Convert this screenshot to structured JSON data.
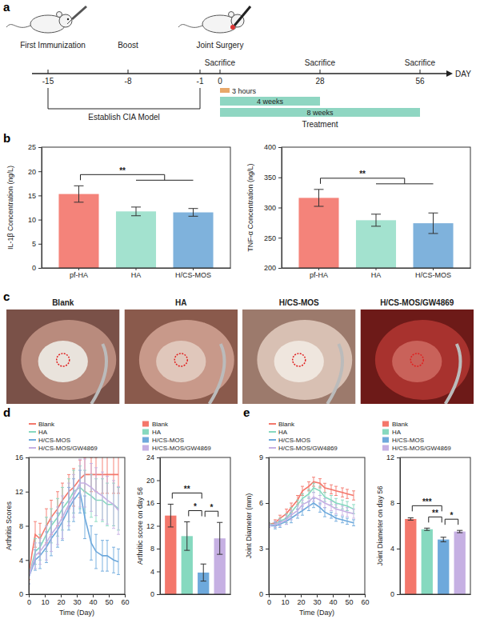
{
  "panel_letters": [
    "a",
    "b",
    "c",
    "d",
    "e"
  ],
  "timeline": {
    "ticks": [
      "-15",
      "-8",
      "-1",
      "0",
      "28",
      "56"
    ],
    "axis_label": "DAY",
    "events": [
      {
        "label": "First Immunization",
        "at": "-15"
      },
      {
        "label": "Boost",
        "at": "-8"
      },
      {
        "label": "Joint Surgery",
        "at": "0"
      }
    ],
    "sacrifices": [
      {
        "label": "Sacrifice",
        "at": "0"
      },
      {
        "label": "Sacrifice",
        "at": "28"
      },
      {
        "label": "Sacrifice",
        "at": "56"
      }
    ],
    "periods": [
      {
        "label": "3 hours",
        "start": "0"
      },
      {
        "label": "4 weeks",
        "start": "0",
        "end": "28"
      },
      {
        "label": "8 weeks",
        "start": "0",
        "end": "56"
      }
    ],
    "bracket": {
      "label": "Establish CIA Model",
      "from": "-15",
      "to": "-1"
    },
    "treatment": "Treatment"
  },
  "photos": {
    "labels": [
      "Blank",
      "HA",
      "H/CS-MOS",
      "H/CS-MOS/GW4869"
    ]
  },
  "chart_data": [
    {
      "type": "bar",
      "categories": [
        "pf-HA",
        "HA",
        "H/CS-MOS"
      ],
      "values": [
        15.3,
        11.7,
        11.5
      ],
      "errors": [
        1.7,
        0.9,
        0.8
      ],
      "colors": [
        "#f4837a",
        "#a3e2cf",
        "#7fb2dc"
      ],
      "ylabel": "IL-1β Concentration (ng/L)",
      "ylim": [
        0,
        25
      ],
      "yticks": [
        0,
        5,
        10,
        15,
        20,
        25
      ],
      "grid": false,
      "annotations": [
        {
          "groups": [
            [
              "pf-HA"
            ],
            [
              "HA",
              "H/CS-MOS"
            ]
          ],
          "text": "**"
        }
      ]
    },
    {
      "type": "bar",
      "categories": [
        "pf-HA",
        "HA",
        "H/CS-MOS"
      ],
      "values": [
        316,
        279,
        274
      ],
      "errors": [
        14,
        10,
        17
      ],
      "colors": [
        "#f4837a",
        "#a3e2cf",
        "#7fb2dc"
      ],
      "ylabel": "TNF-α Concentration (ng/L)",
      "ylim": [
        200,
        400
      ],
      "yticks": [
        200,
        250,
        300,
        350,
        400
      ],
      "grid": false,
      "annotations": [
        {
          "groups": [
            [
              "pf-HA"
            ],
            [
              "HA",
              "H/CS-MOS"
            ]
          ],
          "text": "**"
        }
      ]
    },
    {
      "type": "line",
      "xlabel": "Time (Day)",
      "ylabel": "Arthritis Scores",
      "x": [
        0,
        4,
        7,
        11,
        14,
        18,
        21,
        25,
        28,
        32,
        35,
        39,
        42,
        46,
        49,
        53,
        56
      ],
      "xlim": [
        0,
        60
      ],
      "xticks": [
        0,
        10,
        20,
        30,
        40,
        50,
        60
      ],
      "ylim": [
        0,
        16
      ],
      "yticks": [
        0,
        4,
        8,
        12,
        16
      ],
      "grid": false,
      "legend": "top",
      "series": [
        {
          "name": "Blank",
          "color": "#f4776b",
          "values": [
            2.5,
            7,
            6.5,
            8,
            9,
            10,
            11,
            12,
            12.5,
            13.5,
            14,
            14,
            14,
            14,
            14,
            14,
            14
          ],
          "errors": [
            0.8,
            1.5,
            1.8,
            2,
            2,
            2,
            2,
            2,
            2.2,
            2.2,
            2,
            2,
            2,
            2.2,
            2.2,
            2.2,
            2.2
          ]
        },
        {
          "name": "HA",
          "color": "#86d9bf",
          "values": [
            2,
            5,
            5.5,
            7,
            8,
            9,
            10,
            11,
            12,
            12.5,
            12,
            11.5,
            11,
            11,
            10.5,
            10.5,
            10
          ],
          "errors": [
            0.8,
            1.5,
            1.5,
            2,
            2,
            2.2,
            2.5,
            2.5,
            2.5,
            2.5,
            2.5,
            2.5,
            2.5,
            2.5,
            2.5,
            2.5,
            2.5
          ]
        },
        {
          "name": "H/CS-MOS",
          "color": "#6ea9dc",
          "values": [
            2,
            4,
            4.5,
            5.5,
            6.5,
            7.5,
            8.5,
            10,
            11,
            12,
            9,
            6,
            5,
            4.5,
            4.5,
            4,
            3.8
          ],
          "errors": [
            0.8,
            1.2,
            1.5,
            1.8,
            2,
            2,
            2.2,
            2.5,
            2.5,
            2.5,
            2.5,
            2,
            2,
            1.8,
            1.8,
            1.5,
            1.5
          ]
        },
        {
          "name": "H/CS-MOS/GW4869",
          "color": "#c6b0e3",
          "values": [
            2,
            4.5,
            5,
            6,
            7,
            8,
            9,
            10.5,
            11.5,
            13,
            13,
            12.5,
            12,
            11.5,
            11,
            10.5,
            9.8
          ],
          "errors": [
            0.8,
            1.5,
            1.5,
            2,
            2,
            2.2,
            2.5,
            2.5,
            2.5,
            2.8,
            2.8,
            2.8,
            2.8,
            2.8,
            2.8,
            2.8,
            2.8
          ]
        }
      ]
    },
    {
      "type": "bar",
      "categories": [
        "Blank",
        "HA",
        "H/CS-MOS",
        "H/CS-MOS/GW4869"
      ],
      "values": [
        13.8,
        10.2,
        3.8,
        9.8
      ],
      "errors": [
        2,
        2.5,
        1.5,
        2.8
      ],
      "colors": [
        "#f4776b",
        "#86d9bf",
        "#6ea9dc",
        "#c6b0e3"
      ],
      "ylabel": "Arthritic score on day 56",
      "ylim": [
        0,
        24
      ],
      "yticks": [
        0,
        4,
        8,
        12,
        16,
        20,
        24
      ],
      "grid": false,
      "legend": "top",
      "tick_labels": "y",
      "annotations": [
        {
          "groups": [
            [
              "HA"
            ],
            [
              "H/CS-MOS"
            ]
          ],
          "text": "*"
        },
        {
          "groups": [
            [
              "H/CS-MOS"
            ],
            [
              "H/CS-MOS/GW4869"
            ]
          ],
          "text": "*"
        },
        {
          "groups": [
            [
              "Blank"
            ],
            [
              "H/CS-MOS"
            ]
          ],
          "text": "**"
        }
      ]
    },
    {
      "type": "line",
      "xlabel": "Time (Day)",
      "ylabel": "Joint Diameter (mm)",
      "x": [
        0,
        4,
        7,
        11,
        14,
        18,
        21,
        25,
        28,
        32,
        35,
        39,
        42,
        46,
        49,
        53
      ],
      "xlim": [
        0,
        60
      ],
      "xticks": [
        0,
        10,
        20,
        30,
        40,
        50,
        60
      ],
      "ylim": [
        0,
        9
      ],
      "yticks": [
        0,
        3,
        6,
        9
      ],
      "grid": false,
      "legend": "top",
      "series": [
        {
          "name": "Blank",
          "color": "#f4776b",
          "values": [
            4.6,
            4.7,
            5.0,
            5.3,
            5.7,
            6.2,
            6.8,
            7.1,
            7.4,
            7.3,
            7.0,
            6.9,
            6.8,
            6.7,
            6.6,
            6.5
          ],
          "errors": [
            0.1,
            0.2,
            0.2,
            0.3,
            0.3,
            0.3,
            0.3,
            0.3,
            0.3,
            0.3,
            0.3,
            0.3,
            0.3,
            0.3,
            0.3,
            0.3
          ]
        },
        {
          "name": "HA",
          "color": "#86d9bf",
          "values": [
            4.6,
            4.6,
            4.8,
            5.0,
            5.4,
            5.9,
            6.3,
            6.6,
            7.0,
            6.8,
            6.4,
            6.2,
            6.0,
            5.9,
            5.8,
            5.6
          ],
          "errors": [
            0.1,
            0.2,
            0.2,
            0.3,
            0.3,
            0.3,
            0.3,
            0.3,
            0.3,
            0.3,
            0.3,
            0.3,
            0.3,
            0.3,
            0.3,
            0.3
          ]
        },
        {
          "name": "H/CS-MOS",
          "color": "#6ea9dc",
          "values": [
            4.5,
            4.5,
            4.6,
            4.8,
            5.0,
            5.3,
            5.5,
            5.8,
            6.0,
            5.7,
            5.4,
            5.2,
            5.0,
            4.9,
            4.8,
            4.7
          ],
          "errors": [
            0.1,
            0.2,
            0.2,
            0.2,
            0.3,
            0.3,
            0.3,
            0.3,
            0.3,
            0.3,
            0.3,
            0.2,
            0.2,
            0.2,
            0.2,
            0.2
          ]
        },
        {
          "name": "H/CS-MOS/GW4869",
          "color": "#c6b0e3",
          "values": [
            4.5,
            4.6,
            4.7,
            4.9,
            5.2,
            5.5,
            5.9,
            6.1,
            6.4,
            6.2,
            6.0,
            5.8,
            5.6,
            5.5,
            5.4,
            5.3
          ],
          "errors": [
            0.1,
            0.2,
            0.2,
            0.3,
            0.3,
            0.3,
            0.3,
            0.3,
            0.3,
            0.3,
            0.3,
            0.3,
            0.3,
            0.3,
            0.3,
            0.3
          ]
        }
      ]
    },
    {
      "type": "bar",
      "categories": [
        "Blank",
        "HA",
        "H/CS-MOS",
        "H/CS-MOS/GW4869"
      ],
      "values": [
        6.6,
        5.7,
        4.8,
        5.5
      ],
      "errors": [
        0.1,
        0.1,
        0.2,
        0.1
      ],
      "colors": [
        "#f4776b",
        "#86d9bf",
        "#6ea9dc",
        "#c6b0e3"
      ],
      "ylabel": "Joint Diameter on day 56",
      "ylim": [
        0,
        12
      ],
      "yticks": [
        0,
        4,
        8,
        12
      ],
      "grid": false,
      "legend": "top",
      "tick_labels": "y",
      "annotations": [
        {
          "groups": [
            [
              "HA"
            ],
            [
              "H/CS-MOS"
            ]
          ],
          "text": "**"
        },
        {
          "groups": [
            [
              "H/CS-MOS"
            ],
            [
              "H/CS-MOS/GW4869"
            ]
          ],
          "text": "*"
        },
        {
          "groups": [
            [
              "Blank"
            ],
            [
              "H/CS-MOS"
            ]
          ],
          "text": "***"
        }
      ]
    }
  ]
}
